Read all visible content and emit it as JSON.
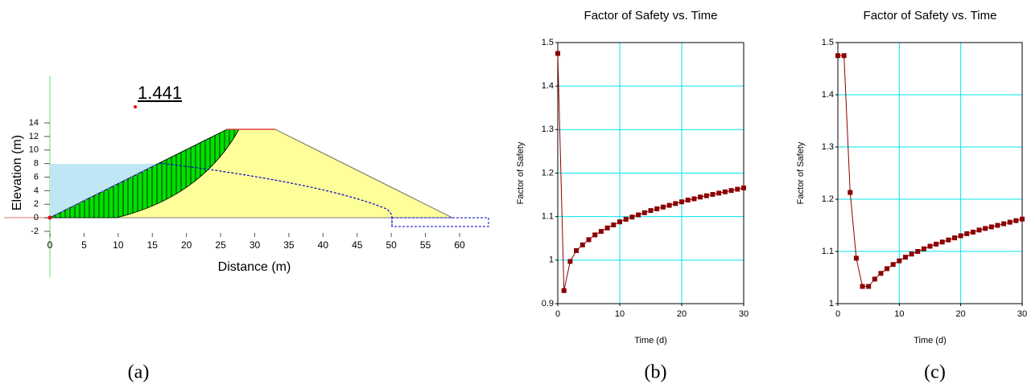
{
  "chart_data": [
    {
      "type": "diagram",
      "xlabel": "Distance (m)",
      "ylabel": "Elevation (m)",
      "annotation": "1.441",
      "caption": "(a)",
      "xlim": [
        0,
        60
      ],
      "ylim": [
        -2,
        14
      ],
      "xticks": [
        0,
        5,
        10,
        15,
        20,
        25,
        30,
        35,
        40,
        45,
        50,
        55,
        60
      ],
      "yticks": [
        -2,
        0,
        2,
        4,
        6,
        8,
        10,
        12,
        14
      ]
    },
    {
      "type": "line",
      "title": "Factor of Safety vs. Time",
      "xlabel": "Time (d)",
      "ylabel": "Factor of Safety",
      "caption": "(b)",
      "xlim": [
        0,
        30
      ],
      "ylim": [
        0.9,
        1.5
      ],
      "xticks": [
        0,
        10,
        20,
        30
      ],
      "yticks": [
        0.9,
        1,
        1.1,
        1.2,
        1.3,
        1.4,
        1.5
      ],
      "grid": true,
      "color": "#8b0000",
      "x": [
        0,
        1,
        2,
        3,
        4,
        5,
        6,
        7,
        8,
        9,
        10,
        11,
        12,
        13,
        14,
        15,
        16,
        17,
        18,
        19,
        20,
        21,
        22,
        23,
        24,
        25,
        26,
        27,
        28,
        29,
        30
      ],
      "values": [
        1.475,
        0.93,
        0.997,
        1.022,
        1.035,
        1.047,
        1.058,
        1.066,
        1.074,
        1.081,
        1.088,
        1.094,
        1.099,
        1.104,
        1.109,
        1.114,
        1.118,
        1.122,
        1.126,
        1.13,
        1.134,
        1.138,
        1.141,
        1.145,
        1.148,
        1.151,
        1.154,
        1.157,
        1.16,
        1.163,
        1.166
      ]
    },
    {
      "type": "line",
      "title": "Factor of Safety vs. Time",
      "xlabel": "Time (d)",
      "ylabel": "Factor of Safety",
      "caption": "(c)",
      "xlim": [
        0,
        30
      ],
      "ylim": [
        1,
        1.5
      ],
      "xticks": [
        0,
        10,
        20,
        30
      ],
      "yticks": [
        1,
        1.1,
        1.2,
        1.3,
        1.4,
        1.5
      ],
      "grid": true,
      "color": "#8b0000",
      "x": [
        0,
        1,
        2,
        3,
        4,
        5,
        6,
        7,
        8,
        9,
        10,
        11,
        12,
        13,
        14,
        15,
        16,
        17,
        18,
        19,
        20,
        21,
        22,
        23,
        24,
        25,
        26,
        27,
        28,
        29,
        30
      ],
      "values": [
        1.475,
        1.475,
        1.213,
        1.087,
        1.033,
        1.033,
        1.047,
        1.058,
        1.067,
        1.075,
        1.082,
        1.089,
        1.095,
        1.1,
        1.105,
        1.11,
        1.114,
        1.118,
        1.122,
        1.126,
        1.13,
        1.134,
        1.137,
        1.141,
        1.144,
        1.147,
        1.15,
        1.153,
        1.156,
        1.159,
        1.162
      ]
    }
  ]
}
